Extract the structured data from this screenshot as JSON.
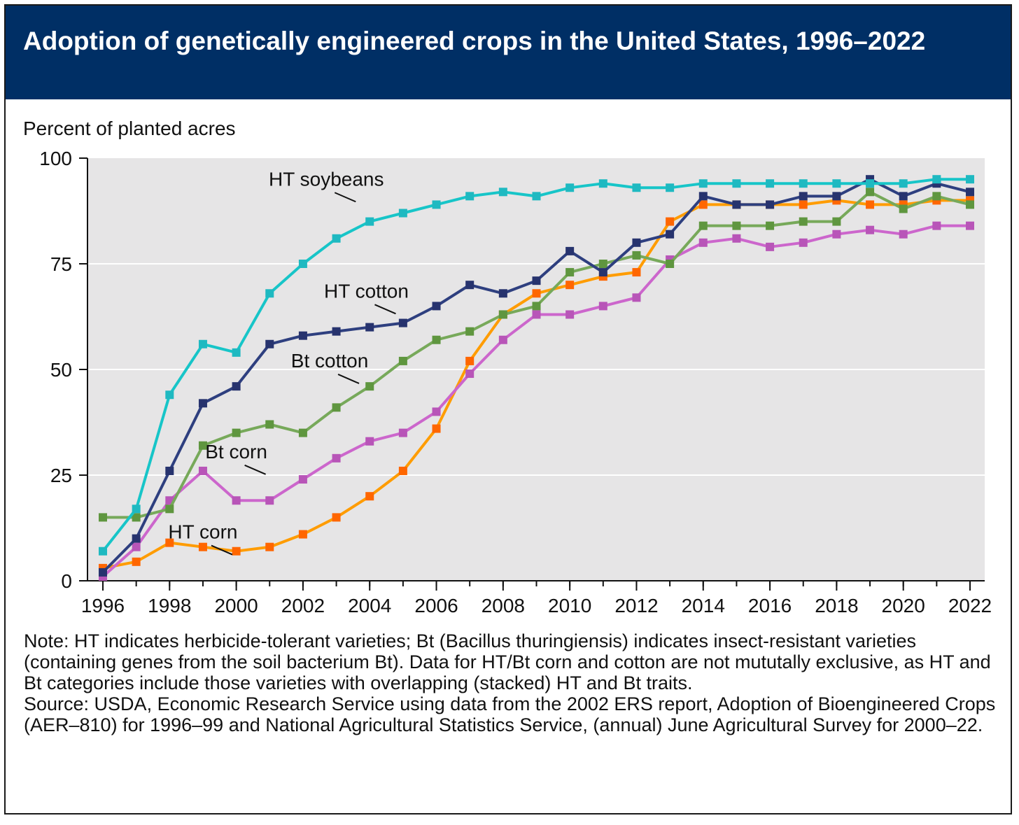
{
  "title": "Adoption of genetically engineered crops in the United States, 1996–2022",
  "colors": {
    "header": "#002f65",
    "plot_bg": "#e6e5e6",
    "grid": "#ffffff"
  },
  "chart_data": {
    "type": "line",
    "ylabel": "Percent of planted acres",
    "ylim": [
      0,
      100
    ],
    "yticks": [
      0,
      25,
      50,
      75,
      100
    ],
    "xlim": [
      1996,
      2022
    ],
    "xticks": [
      1996,
      1998,
      2000,
      2002,
      2004,
      2006,
      2008,
      2010,
      2012,
      2014,
      2016,
      2018,
      2020,
      2022
    ],
    "grid": true,
    "x": [
      1996,
      1997,
      1998,
      1999,
      2000,
      2001,
      2002,
      2003,
      2004,
      2005,
      2006,
      2007,
      2008,
      2009,
      2010,
      2011,
      2012,
      2013,
      2014,
      2015,
      2016,
      2017,
      2018,
      2019,
      2020,
      2021,
      2022
    ],
    "series": [
      {
        "name": "HT corn",
        "color": "#ff9c00",
        "marker": "#ff6600",
        "label_pos": [
          1999,
          10
        ],
        "values": [
          3,
          4.5,
          9,
          8,
          7,
          8,
          11,
          15,
          20,
          26,
          36,
          52,
          63,
          68,
          70,
          72,
          73,
          85,
          89,
          89,
          89,
          89,
          90,
          89,
          89,
          90,
          90
        ]
      },
      {
        "name": "Bt corn",
        "color": "#cc66cc",
        "marker": "#b855b8",
        "label_pos": [
          2000,
          29
        ],
        "values": [
          1,
          8,
          19,
          26,
          19,
          19,
          24,
          29,
          33,
          35,
          40,
          49,
          57,
          63,
          63,
          65,
          67,
          76,
          80,
          81,
          79,
          80,
          82,
          83,
          82,
          84,
          84
        ]
      },
      {
        "name": "Bt cotton",
        "color": "#77a95a",
        "marker": "#5f963f",
        "label_pos": [
          2002.8,
          50.5
        ],
        "values": [
          15,
          15,
          17,
          32,
          35,
          37,
          35,
          41,
          46,
          52,
          57,
          59,
          63,
          65,
          73,
          75,
          77,
          75,
          84,
          84,
          84,
          85,
          85,
          92,
          88,
          91,
          89
        ]
      },
      {
        "name": "HT cotton",
        "color": "#2e3f7f",
        "marker": "#27336e",
        "label_pos": [
          2003.9,
          67
        ],
        "values": [
          2,
          10,
          26,
          42,
          46,
          56,
          58,
          59,
          60,
          61,
          65,
          70,
          68,
          71,
          78,
          73,
          80,
          82,
          91,
          89,
          89,
          91,
          91,
          95,
          91,
          94,
          92
        ]
      },
      {
        "name": "HT soybeans",
        "color": "#17c5c8",
        "marker": "#1fb9c1",
        "label_pos": [
          2002.7,
          93.5
        ],
        "values": [
          7,
          17,
          44,
          56,
          54,
          68,
          75,
          81,
          85,
          87,
          89,
          91,
          92,
          91,
          93,
          94,
          93,
          93,
          94,
          94,
          94,
          94,
          94,
          94,
          94,
          95,
          95
        ]
      }
    ]
  },
  "notes": {
    "note": "Note: HT indicates herbicide-tolerant varieties; Bt (Bacillus thuringiensis) indicates insect-resistant varieties (containing genes from the soil bacterium Bt). Data for HT/Bt corn and cotton are not mututally exclusive, as HT and Bt categories include those varieties with overlapping (stacked) HT and Bt traits.",
    "source": "Source: USDA, Economic Research Service using data from the 2002 ERS report, Adoption of Bioengineered Crops (AER–810) for 1996–99 and National Agricultural Statistics Service, (annual) June Agricultural Survey for 2000–22."
  }
}
